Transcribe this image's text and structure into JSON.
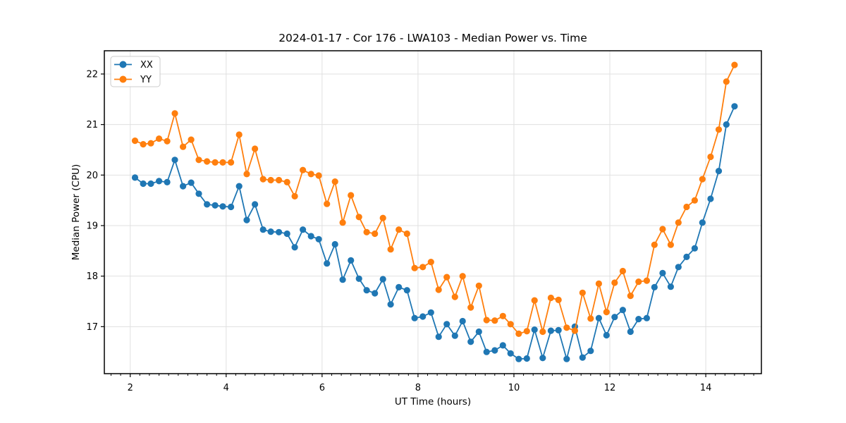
{
  "figure": {
    "title": "2024-01-17 - Cor 176 - LWA103 - Median Power vs. Time"
  },
  "chart_data": {
    "type": "line",
    "title": "2024-01-17 - Cor 176 - LWA103 - Median Power vs. Time",
    "xlabel": "UT Time (hours)",
    "ylabel": "Median Power (CPU)",
    "xlim": [
      1.46,
      15.16
    ],
    "ylim": [
      16.07,
      22.46
    ],
    "x_ticks": [
      2,
      4,
      6,
      8,
      10,
      12,
      14
    ],
    "x_minor_tick_step": 0.2,
    "y_ticks": [
      17,
      18,
      19,
      20,
      21,
      22
    ],
    "grid": true,
    "legend": {
      "position": "upper-left",
      "entries": [
        "XX",
        "YY"
      ]
    },
    "x": [
      2.1,
      2.27,
      2.43,
      2.6,
      2.77,
      2.93,
      3.1,
      3.27,
      3.43,
      3.6,
      3.77,
      3.93,
      4.1,
      4.27,
      4.43,
      4.6,
      4.77,
      4.93,
      5.1,
      5.27,
      5.43,
      5.6,
      5.77,
      5.93,
      6.1,
      6.27,
      6.43,
      6.6,
      6.77,
      6.93,
      7.1,
      7.27,
      7.43,
      7.6,
      7.77,
      7.93,
      8.1,
      8.27,
      8.43,
      8.6,
      8.77,
      8.93,
      9.1,
      9.27,
      9.43,
      9.6,
      9.77,
      9.93,
      10.1,
      10.27,
      10.43,
      10.6,
      10.77,
      10.93,
      11.1,
      11.27,
      11.43,
      11.6,
      11.77,
      11.93,
      12.1,
      12.27,
      12.43,
      12.6,
      12.77,
      12.93,
      13.1,
      13.27,
      13.43,
      13.6,
      13.77,
      13.93,
      14.1,
      14.27,
      14.43,
      14.6
    ],
    "series": [
      {
        "name": "XX",
        "color": "#1f77b4",
        "values": [
          19.95,
          19.83,
          19.83,
          19.88,
          19.86,
          20.3,
          19.78,
          19.85,
          19.63,
          19.42,
          19.4,
          19.38,
          19.37,
          19.78,
          19.11,
          19.42,
          18.92,
          18.88,
          18.87,
          18.84,
          18.57,
          18.92,
          18.79,
          18.73,
          18.25,
          18.63,
          17.93,
          18.31,
          17.95,
          17.72,
          17.66,
          17.94,
          17.44,
          17.78,
          17.72,
          17.17,
          17.2,
          17.28,
          16.8,
          17.05,
          16.82,
          17.11,
          16.7,
          16.9,
          16.5,
          16.53,
          16.63,
          16.47,
          16.36,
          16.37,
          16.94,
          16.38,
          16.92,
          16.93,
          16.36,
          17.0,
          16.39,
          16.52,
          17.17,
          16.83,
          17.19,
          17.33,
          16.9,
          17.15,
          17.17,
          17.78,
          18.06,
          17.79,
          18.18,
          18.38,
          18.55,
          19.06,
          19.53,
          20.08,
          21.0,
          21.36
        ]
      },
      {
        "name": "YY",
        "color": "#ff7f0e",
        "values": [
          20.68,
          20.61,
          20.63,
          20.72,
          20.67,
          21.22,
          20.56,
          20.7,
          20.3,
          20.27,
          20.25,
          20.25,
          20.25,
          20.8,
          20.02,
          20.52,
          19.92,
          19.9,
          19.9,
          19.86,
          19.58,
          20.1,
          20.02,
          19.99,
          19.43,
          19.87,
          19.06,
          19.6,
          19.17,
          18.87,
          18.84,
          19.15,
          18.53,
          18.92,
          18.84,
          18.16,
          18.18,
          18.28,
          17.73,
          17.98,
          17.59,
          18.0,
          17.38,
          17.81,
          17.13,
          17.12,
          17.21,
          17.05,
          16.86,
          16.91,
          17.52,
          16.9,
          17.57,
          17.53,
          16.98,
          16.92,
          17.67,
          17.16,
          17.85,
          17.29,
          17.87,
          18.1,
          17.61,
          17.89,
          17.91,
          18.62,
          18.93,
          18.62,
          19.06,
          19.37,
          19.5,
          19.92,
          20.36,
          20.9,
          21.85,
          22.18
        ]
      }
    ]
  },
  "colors": {
    "series_xx": "#1f77b4",
    "series_yy": "#ff7f0e",
    "grid": "#e0e0e0",
    "spine": "#000000",
    "background": "#ffffff",
    "legend_border": "#cccccc"
  }
}
